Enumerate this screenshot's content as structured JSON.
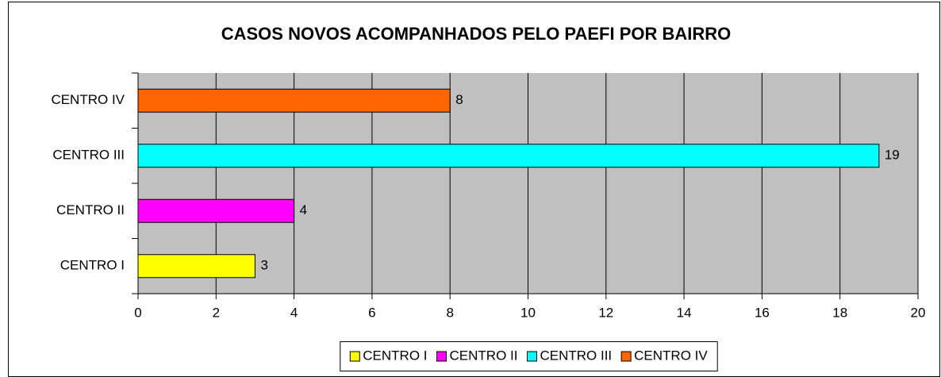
{
  "chart_data": {
    "type": "bar",
    "orientation": "horizontal",
    "title": "CASOS NOVOS ACOMPANHADOS PELO PAEFI POR BAIRRO",
    "categories": [
      "CENTRO I",
      "CENTRO II",
      "CENTRO III",
      "CENTRO IV"
    ],
    "values": [
      3,
      4,
      19,
      8
    ],
    "colors": [
      "#ffff00",
      "#ff00ff",
      "#00ffff",
      "#ff6600"
    ],
    "xlim": [
      0,
      20
    ],
    "xticks": [
      0,
      2,
      4,
      6,
      8,
      10,
      12,
      14,
      16,
      18,
      20
    ],
    "grid": true,
    "legend": "bottom"
  }
}
